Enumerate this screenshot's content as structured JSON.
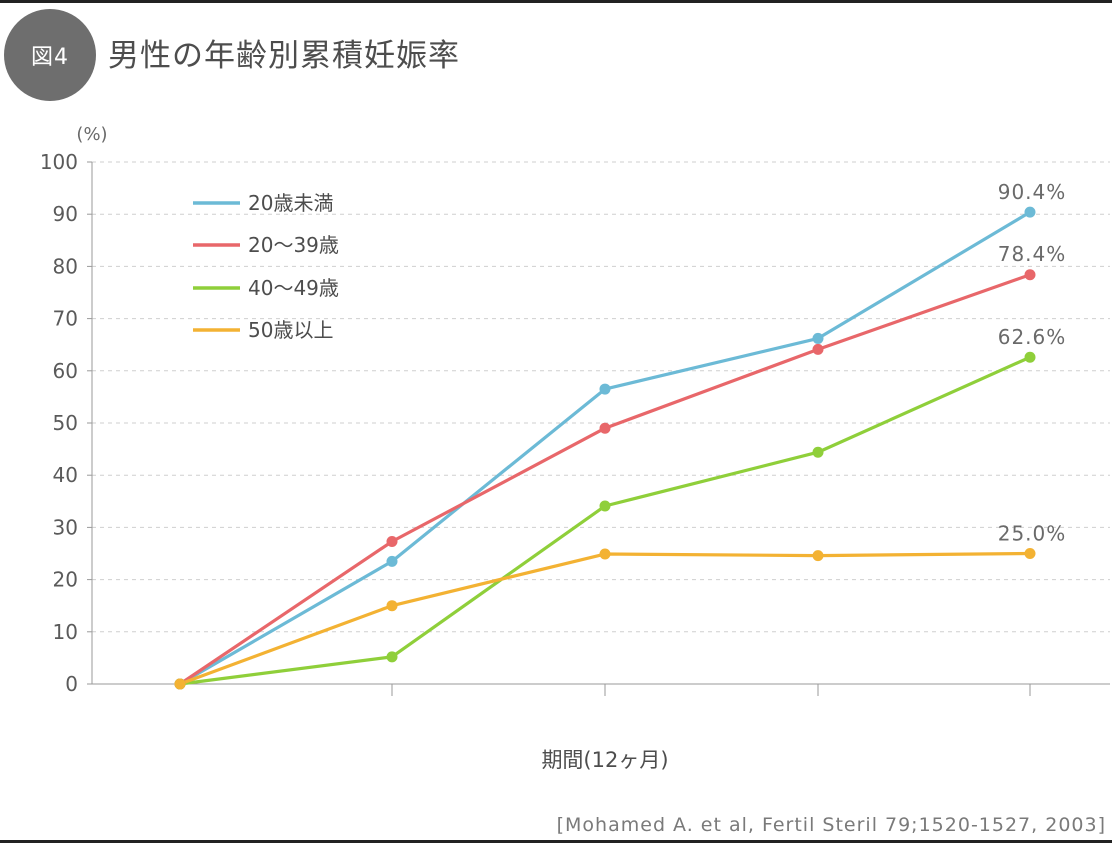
{
  "header": {
    "badge": "図4",
    "title": "男性の年齢別累積妊娠率"
  },
  "source": "[Mohamed A. et al, Fertil Steril 79;1520-1527, 2003]",
  "chart_data": {
    "type": "line",
    "ylabel": "(%)",
    "xlabel": "期間(12ヶ月)",
    "ylim": [
      0,
      100
    ],
    "yticks": [
      0,
      10,
      20,
      30,
      40,
      50,
      60,
      70,
      80,
      90,
      100
    ],
    "x": [
      0,
      1,
      2,
      3,
      4
    ],
    "grid": true,
    "legend_position": "top-left",
    "series": [
      {
        "name": "20歳未満",
        "color": "#6cbad6",
        "values": [
          0,
          23.5,
          56.5,
          66.2,
          90.4
        ],
        "end_label": "90.4%"
      },
      {
        "name": "20〜39歳",
        "color": "#e8676a",
        "values": [
          0,
          27.3,
          49.0,
          64.1,
          78.4
        ],
        "end_label": "78.4%"
      },
      {
        "name": "40〜49歳",
        "color": "#8fcf3a",
        "values": [
          0,
          5.2,
          34.1,
          44.4,
          62.6
        ],
        "end_label": "62.6%"
      },
      {
        "name": "50歳以上",
        "color": "#f3b233",
        "values": [
          0,
          15.0,
          24.9,
          24.6,
          25.0
        ],
        "end_label": "25.0%"
      }
    ]
  }
}
